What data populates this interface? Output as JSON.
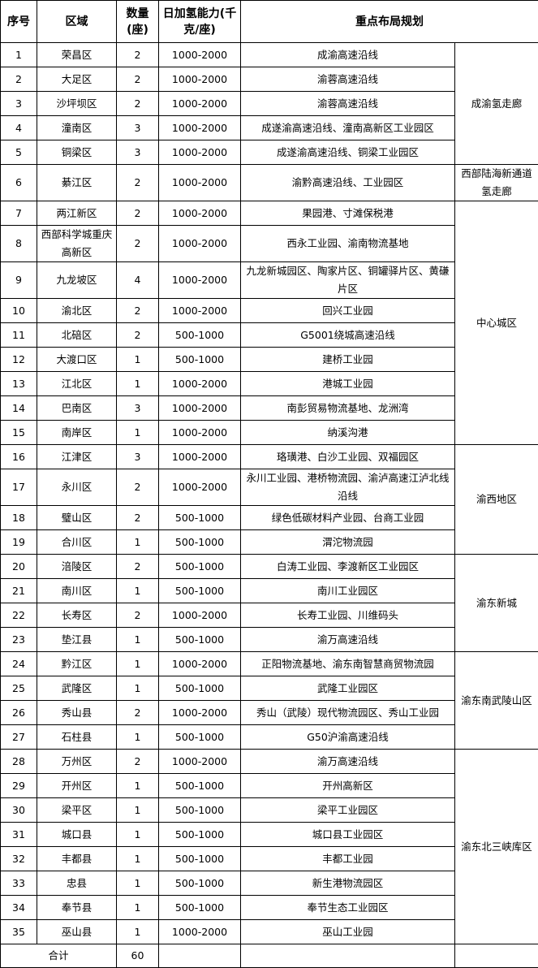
{
  "headers": {
    "index": "序号",
    "region": "区域",
    "count": "数量(座)",
    "capacity": "日加氢能力(千克/座)",
    "plan": "重点布局规划"
  },
  "rows": [
    {
      "no": "1",
      "area": "荣昌区",
      "count": "2",
      "capacity": "1000-2000",
      "plan": "成渝高速沿线"
    },
    {
      "no": "2",
      "area": "大足区",
      "count": "2",
      "capacity": "1000-2000",
      "plan": "渝蓉高速沿线"
    },
    {
      "no": "3",
      "area": "沙坪坝区",
      "count": "2",
      "capacity": "1000-2000",
      "plan": "渝蓉高速沿线"
    },
    {
      "no": "4",
      "area": "潼南区",
      "count": "3",
      "capacity": "1000-2000",
      "plan": "成遂渝高速沿线、潼南高新区工业园区"
    },
    {
      "no": "5",
      "area": "铜梁区",
      "count": "3",
      "capacity": "1000-2000",
      "plan": "成遂渝高速沿线、铜梁工业园区"
    },
    {
      "no": "6",
      "area": "綦江区",
      "count": "2",
      "capacity": "1000-2000",
      "plan": "渝黔高速沿线、工业园区"
    },
    {
      "no": "7",
      "area": "两江新区",
      "count": "2",
      "capacity": "1000-2000",
      "plan": "果园港、寸滩保税港"
    },
    {
      "no": "8",
      "area": "西部科学城重庆高新区",
      "count": "2",
      "capacity": "1000-2000",
      "plan": "西永工业园、渝南物流基地"
    },
    {
      "no": "9",
      "area": "九龙坡区",
      "count": "4",
      "capacity": "1000-2000",
      "plan": "九龙新城园区、陶家片区、铜罐驿片区、黄磏片区"
    },
    {
      "no": "10",
      "area": "渝北区",
      "count": "2",
      "capacity": "1000-2000",
      "plan": "回兴工业园"
    },
    {
      "no": "11",
      "area": "北碚区",
      "count": "2",
      "capacity": "500-1000",
      "plan": "G5001绕城高速沿线"
    },
    {
      "no": "12",
      "area": "大渡口区",
      "count": "1",
      "capacity": "500-1000",
      "plan": "建桥工业园"
    },
    {
      "no": "13",
      "area": "江北区",
      "count": "1",
      "capacity": "1000-2000",
      "plan": "港城工业园"
    },
    {
      "no": "14",
      "area": "巴南区",
      "count": "3",
      "capacity": "1000-2000",
      "plan": "南彭贸易物流基地、龙洲湾"
    },
    {
      "no": "15",
      "area": "南岸区",
      "count": "1",
      "capacity": "1000-2000",
      "plan": "纳溪沟港"
    },
    {
      "no": "16",
      "area": "江津区",
      "count": "3",
      "capacity": "1000-2000",
      "plan": "珞璜港、白沙工业园、双福园区"
    },
    {
      "no": "17",
      "area": "永川区",
      "count": "2",
      "capacity": "1000-2000",
      "plan": "永川工业园、港桥物流园、渝泸高速江泸北线沿线"
    },
    {
      "no": "18",
      "area": "璧山区",
      "count": "2",
      "capacity": "500-1000",
      "plan": "绿色低碳材料产业园、台商工业园"
    },
    {
      "no": "19",
      "area": "合川区",
      "count": "1",
      "capacity": "500-1000",
      "plan": "渭沱物流园"
    },
    {
      "no": "20",
      "area": "涪陵区",
      "count": "2",
      "capacity": "500-1000",
      "plan": "白涛工业园、李渡新区工业园区"
    },
    {
      "no": "21",
      "area": "南川区",
      "count": "1",
      "capacity": "500-1000",
      "plan": "南川工业园区"
    },
    {
      "no": "22",
      "area": "长寿区",
      "count": "2",
      "capacity": "1000-2000",
      "plan": "长寿工业园、川维码头"
    },
    {
      "no": "23",
      "area": "垫江县",
      "count": "1",
      "capacity": "500-1000",
      "plan": "渝万高速沿线"
    },
    {
      "no": "24",
      "area": "黔江区",
      "count": "1",
      "capacity": "1000-2000",
      "plan": "正阳物流基地、渝东南智慧商贸物流园"
    },
    {
      "no": "25",
      "area": "武隆区",
      "count": "1",
      "capacity": "500-1000",
      "plan": "武隆工业园区"
    },
    {
      "no": "26",
      "area": "秀山县",
      "count": "2",
      "capacity": "1000-2000",
      "plan": "秀山（武陵）现代物流园区、秀山工业园"
    },
    {
      "no": "27",
      "area": "石柱县",
      "count": "1",
      "capacity": "500-1000",
      "plan": "G50沪渝高速沿线"
    },
    {
      "no": "28",
      "area": "万州区",
      "count": "2",
      "capacity": "1000-2000",
      "plan": "渝万高速沿线"
    },
    {
      "no": "29",
      "area": "开州区",
      "count": "1",
      "capacity": "500-1000",
      "plan": "开州高新区"
    },
    {
      "no": "30",
      "area": "梁平区",
      "count": "1",
      "capacity": "500-1000",
      "plan": "梁平工业园区"
    },
    {
      "no": "31",
      "area": "城口县",
      "count": "1",
      "capacity": "500-1000",
      "plan": "城口县工业园区"
    },
    {
      "no": "32",
      "area": "丰都县",
      "count": "1",
      "capacity": "500-1000",
      "plan": "丰都工业园"
    },
    {
      "no": "33",
      "area": "忠县",
      "count": "1",
      "capacity": "500-1000",
      "plan": "新生港物流园区"
    },
    {
      "no": "34",
      "area": "奉节县",
      "count": "1",
      "capacity": "500-1000",
      "plan": "奉节生态工业园区"
    },
    {
      "no": "35",
      "area": "巫山县",
      "count": "1",
      "capacity": "1000-2000",
      "plan": "巫山工业园"
    }
  ],
  "corridors": [
    {
      "name": "成渝氢走廊",
      "from": 1,
      "to": 5
    },
    {
      "name": "西部陆海新通道氢走廊",
      "from": 6,
      "to": 6
    },
    {
      "name": "中心城区",
      "from": 7,
      "to": 15
    },
    {
      "name": "渝西地区",
      "from": 16,
      "to": 19
    },
    {
      "name": "渝东新城",
      "from": 20,
      "to": 23
    },
    {
      "name": "渝东南武陵山区",
      "from": 24,
      "to": 27
    },
    {
      "name": "渝东北三峡库区",
      "from": 28,
      "to": 35
    }
  ],
  "total": {
    "label": "合计",
    "count": "60"
  }
}
